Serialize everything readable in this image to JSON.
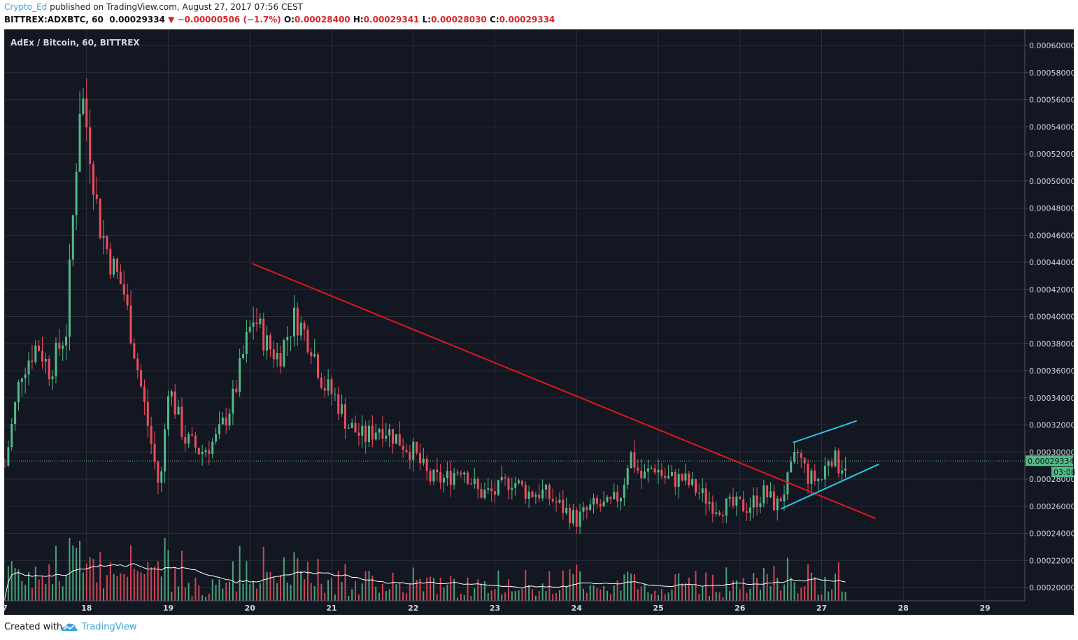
{
  "header": {
    "author": "Crypto_Ed",
    "published_text": "published on TradingView.com, August 27, 2017 07:56 CEST",
    "symbol_line": "BITTREX:ADXBTC, 60",
    "last": "0.00029334",
    "change": "−0.00000506 (−1.7%)",
    "open_label": "O:",
    "open": "0.00028400",
    "high_label": "H:",
    "high": "0.00029341",
    "low_label": "L:",
    "low": "0.00028030",
    "close_label": "C:",
    "close": "0.00029334"
  },
  "chart_title": "AdEx / Bitcoin, 60, BITTREX",
  "price_tag": "0.00029334",
  "countdown_tag": "03:08",
  "footer": {
    "created": "Created with",
    "brand": "TradingView"
  },
  "colors": {
    "background": "#131722",
    "grid": "#2a2e39",
    "up": "#53b987",
    "down": "#eb4d5c",
    "trendline": "#e0161d",
    "channel": "#29c6e6",
    "volume_ma": "#ffffff",
    "price_line": "#53b987"
  },
  "chart_data": {
    "type": "candlestick",
    "symbol": "ADXBTC",
    "exchange": "BITTREX",
    "interval_minutes": 60,
    "x_ticks": [
      "7",
      "18",
      "19",
      "20",
      "21",
      "22",
      "23",
      "24",
      "25",
      "26",
      "27",
      "28",
      "29"
    ],
    "y_ticks": [
      "0.00020000",
      "0.00022000",
      "0.00024000",
      "0.00026000",
      "0.00028000",
      "0.00030000",
      "0.00032000",
      "0.00034000",
      "0.00036000",
      "0.00038000",
      "0.00040000",
      "0.00042000",
      "0.00044000",
      "0.00046000",
      "0.00048000",
      "0.00050000",
      "0.00052000",
      "0.00054000",
      "0.00056000",
      "0.00058000",
      "0.00060000"
    ],
    "ylim": [
      0.000194,
      0.00061
    ],
    "xlim_days": [
      17.0,
      29.0
    ],
    "last_price": 0.00029334,
    "candle_anchors": [
      {
        "day": 17.0,
        "close": 0.00029
      },
      {
        "day": 17.2,
        "close": 0.00036
      },
      {
        "day": 17.4,
        "close": 0.00038
      },
      {
        "day": 17.55,
        "close": 0.00036
      },
      {
        "day": 17.75,
        "close": 0.00039
      },
      {
        "day": 17.85,
        "close": 0.00049
      },
      {
        "day": 17.93,
        "close": 0.00057
      },
      {
        "day": 18.05,
        "close": 0.00052
      },
      {
        "day": 18.15,
        "close": 0.00047
      },
      {
        "day": 18.3,
        "close": 0.00044
      },
      {
        "day": 18.45,
        "close": 0.00042
      },
      {
        "day": 18.6,
        "close": 0.00037
      },
      {
        "day": 18.75,
        "close": 0.00032
      },
      {
        "day": 18.9,
        "close": 0.00027
      },
      {
        "day": 19.0,
        "close": 0.00035
      },
      {
        "day": 19.2,
        "close": 0.00031
      },
      {
        "day": 19.4,
        "close": 0.0003
      },
      {
        "day": 19.6,
        "close": 0.00031
      },
      {
        "day": 19.8,
        "close": 0.00034
      },
      {
        "day": 19.95,
        "close": 0.00038
      },
      {
        "day": 20.05,
        "close": 0.0004
      },
      {
        "day": 20.2,
        "close": 0.00038
      },
      {
        "day": 20.35,
        "close": 0.00037
      },
      {
        "day": 20.55,
        "close": 0.0004
      },
      {
        "day": 20.75,
        "close": 0.00038
      },
      {
        "day": 20.9,
        "close": 0.00035
      },
      {
        "day": 21.05,
        "close": 0.00034
      },
      {
        "day": 21.2,
        "close": 0.00032
      },
      {
        "day": 21.4,
        "close": 0.00031
      },
      {
        "day": 21.6,
        "close": 0.00032
      },
      {
        "day": 21.8,
        "close": 0.00031
      },
      {
        "day": 22.0,
        "close": 0.0003
      },
      {
        "day": 22.2,
        "close": 0.00028
      },
      {
        "day": 22.4,
        "close": 0.00028
      },
      {
        "day": 22.6,
        "close": 0.00029
      },
      {
        "day": 22.8,
        "close": 0.00027
      },
      {
        "day": 23.0,
        "close": 0.00027
      },
      {
        "day": 23.2,
        "close": 0.00028
      },
      {
        "day": 23.4,
        "close": 0.00027
      },
      {
        "day": 23.6,
        "close": 0.00027
      },
      {
        "day": 23.8,
        "close": 0.00026
      },
      {
        "day": 24.0,
        "close": 0.00025
      },
      {
        "day": 24.2,
        "close": 0.00026
      },
      {
        "day": 24.4,
        "close": 0.00026
      },
      {
        "day": 24.55,
        "close": 0.00027
      },
      {
        "day": 24.65,
        "close": 0.0003
      },
      {
        "day": 24.8,
        "close": 0.00028
      },
      {
        "day": 24.95,
        "close": 0.00029
      },
      {
        "day": 25.1,
        "close": 0.00028
      },
      {
        "day": 25.3,
        "close": 0.00028
      },
      {
        "day": 25.5,
        "close": 0.00027
      },
      {
        "day": 25.7,
        "close": 0.00026
      },
      {
        "day": 25.9,
        "close": 0.00026
      },
      {
        "day": 26.1,
        "close": 0.00026
      },
      {
        "day": 26.3,
        "close": 0.00027
      },
      {
        "day": 26.45,
        "close": 0.00026
      },
      {
        "day": 26.6,
        "close": 0.00028
      },
      {
        "day": 26.7,
        "close": 0.0003
      },
      {
        "day": 26.85,
        "close": 0.00028
      },
      {
        "day": 27.0,
        "close": 0.00028
      },
      {
        "day": 27.1,
        "close": 0.0003
      },
      {
        "day": 27.2,
        "close": 0.00029
      },
      {
        "day": 27.3,
        "close": 0.000293
      }
    ],
    "trendlines": [
      {
        "name": "descending-resistance",
        "color": "red",
        "from": {
          "day": 20.03,
          "price": 0.000439
        },
        "to": {
          "day": 27.66,
          "price": 0.000251
        }
      },
      {
        "name": "channel-upper",
        "color": "cyan",
        "from": {
          "day": 26.65,
          "price": 0.000307
        },
        "to": {
          "day": 27.43,
          "price": 0.000323
        }
      },
      {
        "name": "channel-lower",
        "color": "cyan",
        "from": {
          "day": 26.5,
          "price": 0.000258
        },
        "to": {
          "day": 27.7,
          "price": 0.000291
        }
      }
    ],
    "volume": {
      "ma_shown": true
    }
  }
}
